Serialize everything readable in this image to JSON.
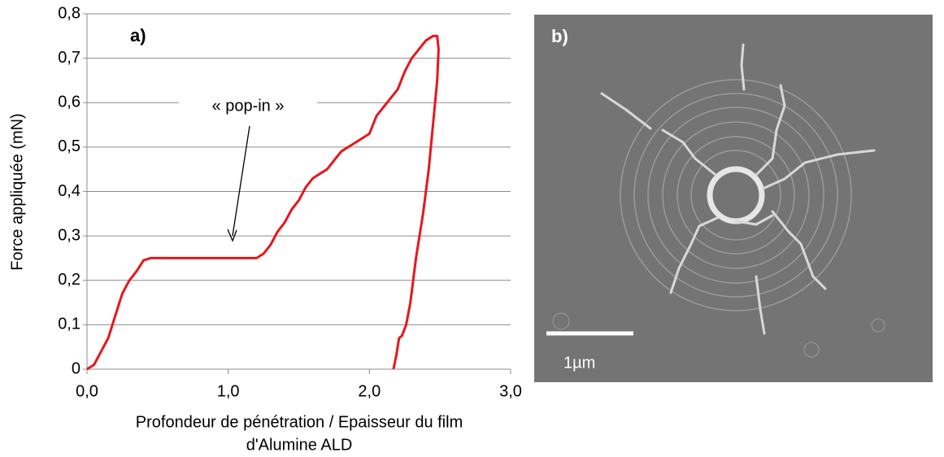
{
  "chart_data": {
    "type": "line",
    "ylabel": "Force appliquée (mN)",
    "xlabel": [
      "Profondeur de pénétration / Epaisseur du film",
      "d'Alumine ALD"
    ],
    "annotations": {
      "panel_a": "a)",
      "popin": "« pop-in »",
      "panel_b": "b)",
      "scale": "1µm"
    },
    "color": "#e8161b",
    "x": [
      0,
      0.05,
      0.1,
      0.15,
      0.2,
      0.25,
      0.3,
      0.35,
      0.4,
      0.45,
      0.6,
      0.8,
      1.0,
      1.2,
      1.25,
      1.3,
      1.35,
      1.4,
      1.45,
      1.5,
      1.55,
      1.6,
      1.7,
      1.8,
      1.9,
      2.0,
      2.05,
      2.1,
      2.2,
      2.25,
      2.3,
      2.35,
      2.4,
      2.45,
      2.48,
      2.49,
      2.48,
      2.45,
      2.42,
      2.38,
      2.33,
      2.29,
      2.26,
      2.23,
      2.21,
      2.19,
      2.17
    ],
    "values": [
      0,
      0.01,
      0.04,
      0.07,
      0.12,
      0.17,
      0.2,
      0.22,
      0.245,
      0.25,
      0.25,
      0.25,
      0.25,
      0.25,
      0.26,
      0.28,
      0.31,
      0.33,
      0.36,
      0.38,
      0.41,
      0.43,
      0.45,
      0.49,
      0.51,
      0.53,
      0.57,
      0.59,
      0.63,
      0.67,
      0.7,
      0.72,
      0.74,
      0.75,
      0.75,
      0.72,
      0.65,
      0.55,
      0.45,
      0.35,
      0.25,
      0.15,
      0.1,
      0.075,
      0.07,
      0.03,
      0
    ],
    "xlim": [
      0,
      3
    ],
    "ylim": [
      0,
      0.8
    ],
    "xticks": [
      {
        "value": 0,
        "label": "0,0"
      },
      {
        "value": 1,
        "label": "1,0"
      },
      {
        "value": 2,
        "label": "2,0"
      },
      {
        "value": 3,
        "label": "3,0"
      }
    ],
    "yticks": [
      0,
      {
        "value": 0.1,
        "label": "0,1"
      },
      {
        "value": 0.2,
        "label": "0,2"
      },
      {
        "value": 0.3,
        "label": "0,3"
      },
      {
        "value": 0.4,
        "label": "0,4"
      },
      {
        "value": 0.5,
        "label": "0,5"
      },
      {
        "value": 0.6,
        "label": "0,6"
      },
      {
        "value": 0.7,
        "label": "0,7"
      },
      {
        "value": 0.8,
        "label": "0,8"
      }
    ],
    "grid": true
  }
}
